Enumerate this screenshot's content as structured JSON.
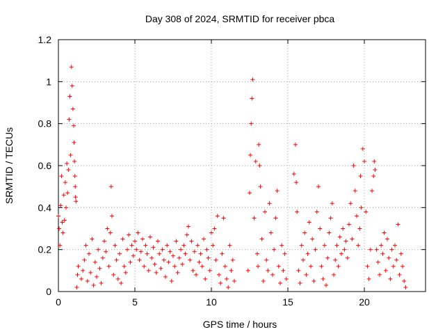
{
  "chart_data": {
    "type": "scatter",
    "title": "Day 308 of 2024, SRMTID for receiver pbca",
    "xlabel": "GPS time / hours",
    "ylabel": "SRMTID / TECUs",
    "xlim": [
      0,
      24
    ],
    "ylim": [
      0,
      1.2
    ],
    "xticks": [
      0,
      5,
      10,
      15,
      20
    ],
    "yticks": [
      0,
      0.2,
      0.4,
      0.6,
      0.8,
      1,
      1.2
    ],
    "xtick_labels": [
      "0",
      "5",
      "10",
      "15",
      "20"
    ],
    "ytick_labels": [
      "0",
      "0.2",
      "0.4",
      "0.6",
      "0.8",
      "1",
      "1.2"
    ],
    "grid": true,
    "marker": "+",
    "color": "#ff0000",
    "series": [
      {
        "name": "pbca",
        "x": [
          0.0,
          0.05,
          0.1,
          0.15,
          0.2,
          0.25,
          0.3,
          0.35,
          0.4,
          0.45,
          0.5,
          0.55,
          0.6,
          0.65,
          0.7,
          0.75,
          0.8,
          0.85,
          0.9,
          0.95,
          1.0,
          1.02,
          1.05,
          1.08,
          1.1,
          1.12,
          1.15,
          1.2,
          1.25,
          1.3,
          1.5,
          1.6,
          1.7,
          1.8,
          1.9,
          2.0,
          2.1,
          2.2,
          2.3,
          2.4,
          2.5,
          2.6,
          2.7,
          2.8,
          2.9,
          3.0,
          3.1,
          3.2,
          3.3,
          3.4,
          3.45,
          3.5,
          3.6,
          3.7,
          3.8,
          3.9,
          4.0,
          4.1,
          4.2,
          4.3,
          4.4,
          4.5,
          4.6,
          4.7,
          4.8,
          4.9,
          5.0,
          5.1,
          5.2,
          5.3,
          5.4,
          5.5,
          5.6,
          5.7,
          5.8,
          5.9,
          6.0,
          6.1,
          6.2,
          6.3,
          6.4,
          6.5,
          6.6,
          6.7,
          6.8,
          6.9,
          7.0,
          7.1,
          7.2,
          7.3,
          7.4,
          7.5,
          7.6,
          7.7,
          7.8,
          7.9,
          8.0,
          8.1,
          8.2,
          8.3,
          8.4,
          8.5,
          8.6,
          8.7,
          8.8,
          8.9,
          9.0,
          9.1,
          9.2,
          9.3,
          9.4,
          9.5,
          9.6,
          9.7,
          9.8,
          9.9,
          10.0,
          10.1,
          10.2,
          10.3,
          10.4,
          10.5,
          10.6,
          10.7,
          10.8,
          10.9,
          11.0,
          11.1,
          11.2,
          11.3,
          11.4,
          11.5,
          12.4,
          12.5,
          12.55,
          12.6,
          12.65,
          12.7,
          12.8,
          12.9,
          13.0,
          13.05,
          13.1,
          13.15,
          13.2,
          13.3,
          13.4,
          13.5,
          13.6,
          13.7,
          13.8,
          13.9,
          14.0,
          14.1,
          14.2,
          14.3,
          14.4,
          14.5,
          14.6,
          14.7,
          14.8,
          14.9,
          15.4,
          15.5,
          15.55,
          15.6,
          15.7,
          15.8,
          15.9,
          16.0,
          16.1,
          16.2,
          16.3,
          16.4,
          16.5,
          16.6,
          16.7,
          16.8,
          16.9,
          17.0,
          17.1,
          17.2,
          17.3,
          17.4,
          17.5,
          17.6,
          17.7,
          17.8,
          17.9,
          18.0,
          18.1,
          18.2,
          18.3,
          18.4,
          18.5,
          18.6,
          18.7,
          18.8,
          18.9,
          19.0,
          19.1,
          19.2,
          19.3,
          19.4,
          19.5,
          19.6,
          19.7,
          19.75,
          19.8,
          19.9,
          20.0,
          20.1,
          20.2,
          20.3,
          20.4,
          20.5,
          20.6,
          20.65,
          20.7,
          20.8,
          20.9,
          21.0,
          21.1,
          21.2,
          21.3,
          21.4,
          21.5,
          21.6,
          21.7,
          21.8,
          21.9,
          22.0,
          22.1,
          22.2,
          22.3,
          22.4,
          22.5,
          22.6,
          22.7
        ],
        "y": [
          0.36,
          0.3,
          0.22,
          0.41,
          0.55,
          0.33,
          0.28,
          0.46,
          0.34,
          0.52,
          0.4,
          0.61,
          0.47,
          0.58,
          0.82,
          0.93,
          0.65,
          1.07,
          0.98,
          0.87,
          0.79,
          0.71,
          0.62,
          0.55,
          0.5,
          0.45,
          0.43,
          0.02,
          0.08,
          0.12,
          0.06,
          0.1,
          0.15,
          0.22,
          0.05,
          0.18,
          0.09,
          0.25,
          0.03,
          0.14,
          0.07,
          0.2,
          0.11,
          0.04,
          0.16,
          0.24,
          0.19,
          0.3,
          0.12,
          0.28,
          0.5,
          0.36,
          0.08,
          0.22,
          0.15,
          0.06,
          0.18,
          0.04,
          0.25,
          0.12,
          0.09,
          0.2,
          0.27,
          0.14,
          0.22,
          0.17,
          0.24,
          0.2,
          0.28,
          0.15,
          0.19,
          0.25,
          0.12,
          0.22,
          0.18,
          0.1,
          0.26,
          0.16,
          0.21,
          0.13,
          0.09,
          0.24,
          0.18,
          0.11,
          0.2,
          0.15,
          0.07,
          0.22,
          0.14,
          0.19,
          0.05,
          0.17,
          0.12,
          0.24,
          0.09,
          0.16,
          0.2,
          0.13,
          0.22,
          0.18,
          0.27,
          0.31,
          0.15,
          0.24,
          0.1,
          0.19,
          0.08,
          0.22,
          0.14,
          0.18,
          0.12,
          0.25,
          0.06,
          0.2,
          0.16,
          0.1,
          0.28,
          0.22,
          0.3,
          0.15,
          0.36,
          0.08,
          0.04,
          0.18,
          0.35,
          0.12,
          0.06,
          0.02,
          0.22,
          0.1,
          0.15,
          0.05,
          0.1,
          0.47,
          0.65,
          0.8,
          0.92,
          1.01,
          0.35,
          0.62,
          0.18,
          0.12,
          0.7,
          0.6,
          0.5,
          0.25,
          0.05,
          0.38,
          0.15,
          0.1,
          0.42,
          0.28,
          0.08,
          0.2,
          0.35,
          0.48,
          0.12,
          0.04,
          0.22,
          0.1,
          0.18,
          0.06,
          0.56,
          0.7,
          0.52,
          0.38,
          0.1,
          0.04,
          0.22,
          0.15,
          0.28,
          0.08,
          0.18,
          0.33,
          0.12,
          0.25,
          0.05,
          0.2,
          0.38,
          0.5,
          0.3,
          0.12,
          0.06,
          0.22,
          0.03,
          0.16,
          0.28,
          0.35,
          0.42,
          0.08,
          0.15,
          0.22,
          0.12,
          0.26,
          0.18,
          0.3,
          0.2,
          0.24,
          0.16,
          0.32,
          0.42,
          0.25,
          0.6,
          0.48,
          0.36,
          0.22,
          0.3,
          0.55,
          0.4,
          0.68,
          0.62,
          0.38,
          0.12,
          0.06,
          0.2,
          0.48,
          0.55,
          0.62,
          0.58,
          0.2,
          0.14,
          0.08,
          0.22,
          0.18,
          0.28,
          0.1,
          0.25,
          0.16,
          0.06,
          0.2,
          0.12,
          0.22,
          0.15,
          0.32,
          0.08,
          0.18,
          0.12,
          0.05,
          0.02
        ]
      }
    ]
  }
}
